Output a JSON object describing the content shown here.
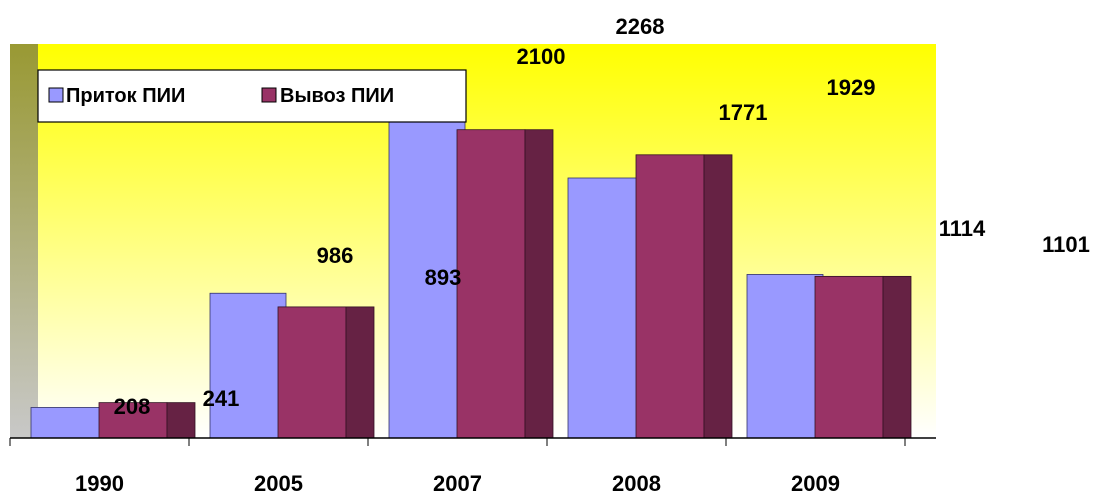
{
  "chart_data": {
    "type": "bar",
    "categories": [
      "1990",
      "2005",
      "2007",
      "2008",
      "2009"
    ],
    "series": [
      {
        "name": "Приток ПИИ",
        "values": [
          208,
          986,
          2268,
          1771,
          1114
        ],
        "color": "#9999ff",
        "labels": [
          "208",
          "986",
          "2268",
          "1771",
          "1114"
        ]
      },
      {
        "name": "Вывоз ПИИ",
        "values": [
          241,
          893,
          2100,
          1929,
          1101
        ],
        "color": "#993366",
        "labels": [
          "241",
          "893",
          "2100",
          "1929",
          "1101"
        ]
      }
    ],
    "legend_position": "top-left",
    "ylim": [
      0,
      2400
    ],
    "grid": false,
    "colors": {
      "background_top": "#ffff00",
      "background_bottom": "#ffffff",
      "wall": "#999933",
      "bar_side_outflow": "#662244",
      "bar_side_inflow": "#666699"
    }
  }
}
